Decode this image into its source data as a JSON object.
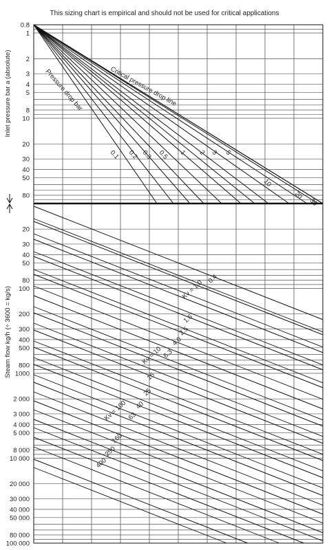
{
  "note": "This sizing chart is empirical and should not be used for critical applications",
  "chart_data": [
    {
      "type": "line",
      "ylabel": "Inlet pressure bar a (absolute)",
      "ylim": [
        0.8,
        100
      ],
      "yscale": "log",
      "yticks": [
        "0.8",
        "1",
        "2",
        "3",
        "4",
        "5",
        "8",
        "10",
        "20",
        "30",
        "40",
        "50",
        "80"
      ],
      "line_labels": [
        "Critical pressure drop line",
        "Pressure drop bar"
      ],
      "series": [
        {
          "name": "0.1",
          "points": [
            [
              0,
              0.8
            ],
            [
              1,
              100
            ]
          ]
        },
        {
          "name": "0.2",
          "points": [
            [
              0,
              0.8
            ],
            [
              1,
              100
            ]
          ]
        },
        {
          "name": "0.3",
          "points": [
            [
              0,
              0.8
            ],
            [
              1,
              100
            ]
          ]
        },
        {
          "name": "0.5",
          "points": [
            [
              0,
              0.8
            ],
            [
              1,
              100
            ]
          ]
        },
        {
          "name": "1",
          "points": [
            [
              0,
              0.8
            ],
            [
              1,
              100
            ]
          ]
        },
        {
          "name": "2",
          "points": [
            [
              0,
              0.8
            ],
            [
              1,
              100
            ]
          ]
        },
        {
          "name": "3",
          "points": [
            [
              0,
              0.8
            ],
            [
              1,
              100
            ]
          ]
        },
        {
          "name": "5",
          "points": [
            [
              0,
              0.8
            ],
            [
              1,
              100
            ]
          ]
        },
        {
          "name": "10",
          "points": [
            [
              0,
              0.8
            ],
            [
              1,
              100
            ]
          ]
        },
        {
          "name": "20",
          "points": [
            [
              0,
              0.8
            ],
            [
              1,
              100
            ]
          ]
        },
        {
          "name": "30",
          "points": [
            [
              0,
              0.8
            ],
            [
              1,
              100
            ]
          ]
        }
      ],
      "grid": true
    },
    {
      "type": "line",
      "ylabel": "Steam flow kg/h (÷ 3600 = kg/s)",
      "ylim": [
        10,
        100000
      ],
      "yscale": "log",
      "yticks": [
        "20",
        "30",
        "40",
        "50",
        "80",
        "100",
        "200",
        "300",
        "400",
        "500",
        "800",
        "1000",
        "2 000",
        "3 000",
        "4 000",
        "5 000",
        "8 000",
        "10 000",
        "20 000",
        "30 000",
        "40 000",
        "50 000",
        "80 000",
        "100 000"
      ],
      "series": [
        {
          "name": "0.4"
        },
        {
          "name": "Kv = 1.0"
        },
        {
          "name": "1.6"
        },
        {
          "name": "2.5"
        },
        {
          "name": "4.0"
        },
        {
          "name": "6.3"
        },
        {
          "name": "Kv = 10"
        },
        {
          "name": "16"
        },
        {
          "name": "25"
        },
        {
          "name": "40"
        },
        {
          "name": "63"
        },
        {
          "name": "Kv = 100"
        },
        {
          "name": "160"
        },
        {
          "name": "250"
        },
        {
          "name": "400"
        }
      ],
      "grid": true
    }
  ]
}
